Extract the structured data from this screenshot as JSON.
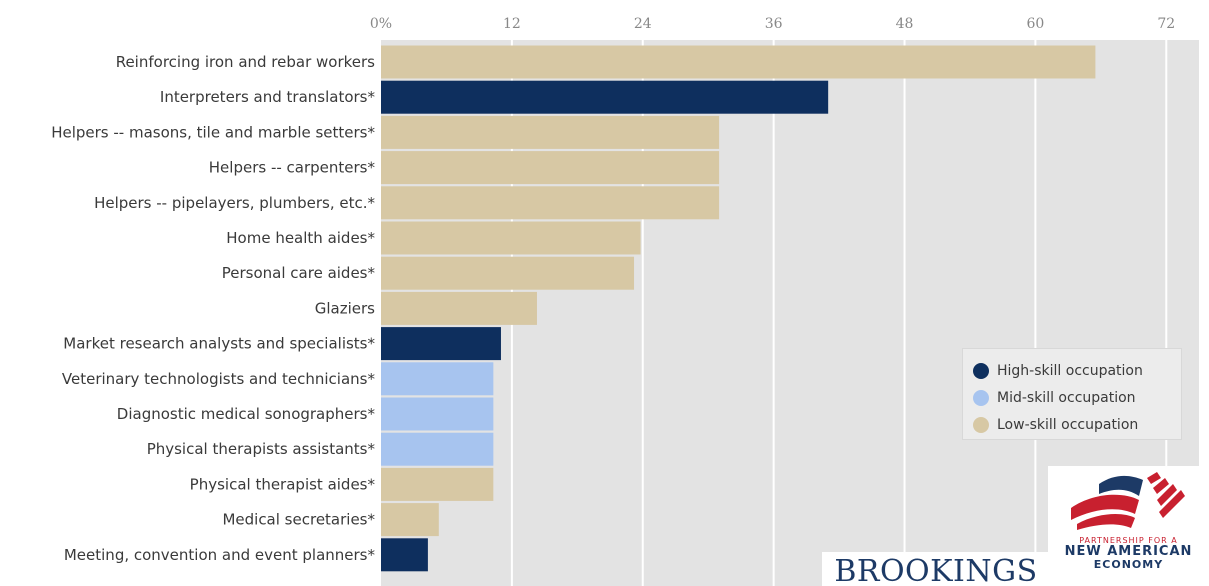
{
  "chart_data": {
    "type": "bar",
    "orientation": "horizontal",
    "categories": [
      "Reinforcing iron and rebar workers",
      "Interpreters and translators*",
      "Helpers -- masons, tile and marble setters*",
      "Helpers -- carpenters*",
      "Helpers -- pipelayers, plumbers, etc.*",
      "Home health aides*",
      "Personal care aides*",
      "Glaziers",
      "Market research analysts and specialists*",
      "Veterinary technologists and technicians*",
      "Diagnostic medical sonographers*",
      "Physical therapists assistants*",
      "Physical therapist aides*",
      "Medical secretaries*",
      "Meeting, convention and event planners*"
    ],
    "values": [
      65.5,
      41,
      31,
      31,
      31,
      23.8,
      23.2,
      14.3,
      11,
      10.3,
      10.3,
      10.3,
      10.3,
      5.3,
      4.3
    ],
    "skill": [
      "low",
      "high",
      "low",
      "low",
      "low",
      "low",
      "low",
      "low",
      "high",
      "mid",
      "mid",
      "mid",
      "low",
      "low",
      "high"
    ],
    "xlim": [
      0,
      75
    ],
    "xticks": [
      0,
      12,
      24,
      36,
      48,
      60,
      72
    ],
    "xtick_labels": [
      "0%",
      "12",
      "24",
      "36",
      "48",
      "60",
      "72"
    ],
    "grid": true,
    "legend_position": "bottom-right",
    "legend": [
      {
        "key": "high",
        "label": "High-skill occupation",
        "color": "#0e2f5e"
      },
      {
        "key": "mid",
        "label": "Mid-skill occupation",
        "color": "#a7c4ef"
      },
      {
        "key": "low",
        "label": "Low-skill occupation",
        "color": "#d7c8a4"
      }
    ]
  },
  "logos": {
    "brookings": "BROOKINGS",
    "nae_line1": "PARTNERSHIP FOR A",
    "nae_line2": "NEW AMERICAN",
    "nae_line3": "ECONOMY"
  }
}
